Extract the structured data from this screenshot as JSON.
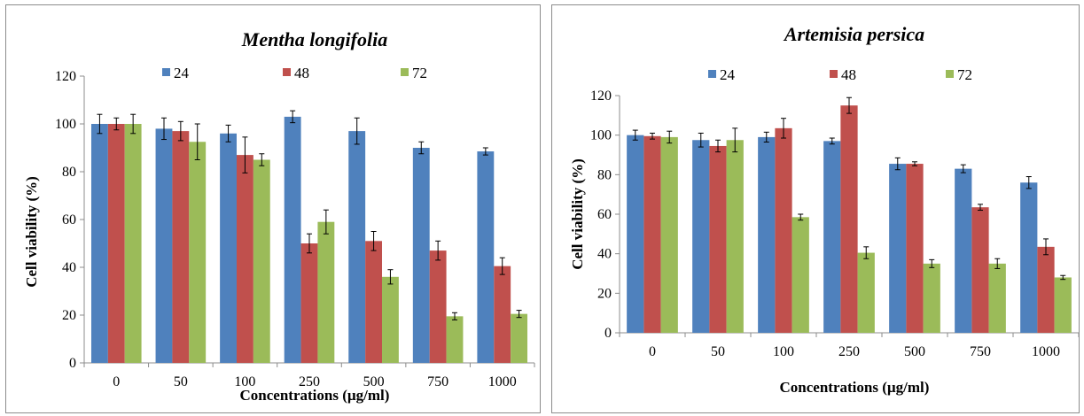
{
  "chart_data": [
    {
      "type": "bar",
      "title": "Mentha longifolia",
      "xlabel": "Concentrations (µg/ml)",
      "ylabel": "Cell viability (%)",
      "ylim": [
        0,
        120
      ],
      "yticks": [
        0,
        20,
        40,
        60,
        80,
        100,
        120
      ],
      "categories": [
        "0",
        "50",
        "100",
        "250",
        "500",
        "750",
        "1000"
      ],
      "legend_position": "top",
      "grid": false,
      "series": [
        {
          "name": "24",
          "color": "#4f81bd",
          "values": [
            100,
            98,
            96,
            103,
            97,
            90,
            88.5
          ],
          "errors": [
            4,
            4.5,
            3.5,
            2.5,
            5.5,
            2.5,
            1.5
          ]
        },
        {
          "name": "48",
          "color": "#c0504d",
          "values": [
            100,
            97,
            87,
            50,
            51,
            47,
            40.5
          ],
          "errors": [
            2.5,
            4,
            7.5,
            4,
            4,
            4,
            3.5
          ]
        },
        {
          "name": "72",
          "color": "#9bbb59",
          "values": [
            100,
            92.5,
            85,
            59,
            36,
            19.5,
            20.5
          ],
          "errors": [
            4,
            7.5,
            2.5,
            5,
            3,
            1.5,
            1.5
          ]
        }
      ]
    },
    {
      "type": "bar",
      "title": "Artemisia persica",
      "xlabel": "Concentrations (µg/ml)",
      "ylabel": "Cell viability (%)",
      "ylim": [
        0,
        120
      ],
      "yticks": [
        0,
        20,
        40,
        60,
        80,
        100,
        120
      ],
      "categories": [
        "0",
        "50",
        "100",
        "250",
        "500",
        "750",
        "1000"
      ],
      "legend_position": "top",
      "grid": false,
      "series": [
        {
          "name": "24",
          "color": "#4f81bd",
          "values": [
            100,
            97.5,
            99,
            97,
            85.5,
            83,
            76
          ],
          "errors": [
            2.5,
            3.5,
            2.5,
            1.5,
            3,
            2,
            3
          ]
        },
        {
          "name": "48",
          "color": "#c0504d",
          "values": [
            99.5,
            94.5,
            103.5,
            115,
            85.5,
            63.5,
            43.5
          ],
          "errors": [
            1.5,
            3,
            5,
            4,
            1,
            1.5,
            4
          ]
        },
        {
          "name": "72",
          "color": "#9bbb59",
          "values": [
            99,
            97.5,
            58.5,
            40.5,
            35,
            35,
            28
          ],
          "errors": [
            3,
            6,
            1.5,
            3,
            2,
            2.5,
            1
          ]
        }
      ]
    }
  ]
}
